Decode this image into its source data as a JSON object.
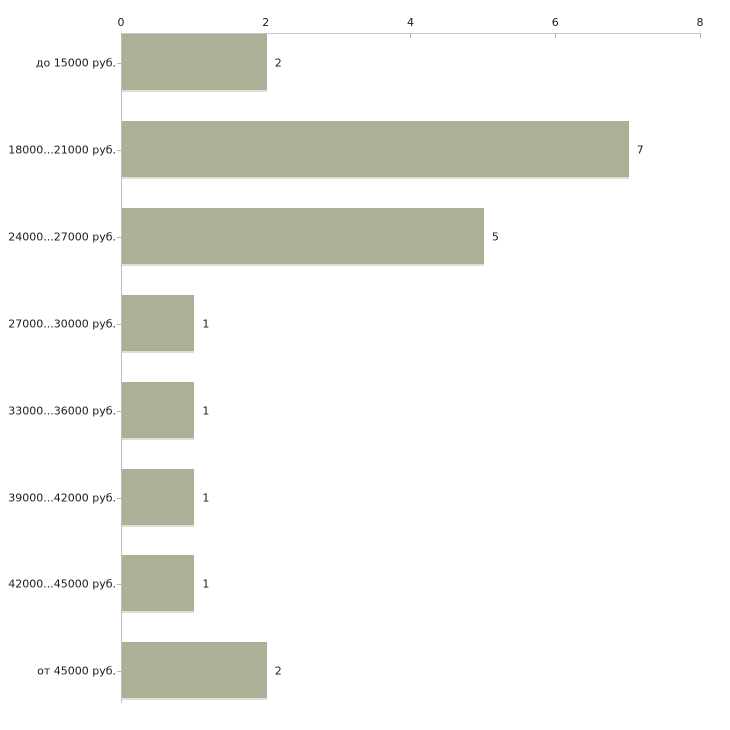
{
  "chart_data": {
    "type": "bar",
    "orientation": "horizontal",
    "title": "",
    "xlabel": "",
    "ylabel": "",
    "categories": [
      "до 15000 руб.",
      "18000...21000 руб.",
      "24000...27000 руб.",
      "27000...30000 руб.",
      "33000...36000 руб.",
      "39000...42000 руб.",
      "42000...45000 руб.",
      "от 45000 руб."
    ],
    "values": [
      2,
      7,
      5,
      1,
      1,
      1,
      1,
      2
    ],
    "value_labels": [
      "2",
      "7",
      "5",
      "1",
      "1",
      "1",
      "1",
      "2"
    ],
    "xlim": [
      0,
      8
    ],
    "x_ticks": [
      0,
      2,
      4,
      6,
      8
    ],
    "axis_position": "top",
    "grid": false,
    "legend": false,
    "colors": {
      "background": "#ffffff",
      "bar_fill": "#abb196",
      "bar_bottom_edge": "#dee1d2",
      "axis_line": "#c9c9c9",
      "baseline": "#bdbdbd",
      "tick_mark": "#b8bc82",
      "text": "#1c1c1c"
    }
  }
}
